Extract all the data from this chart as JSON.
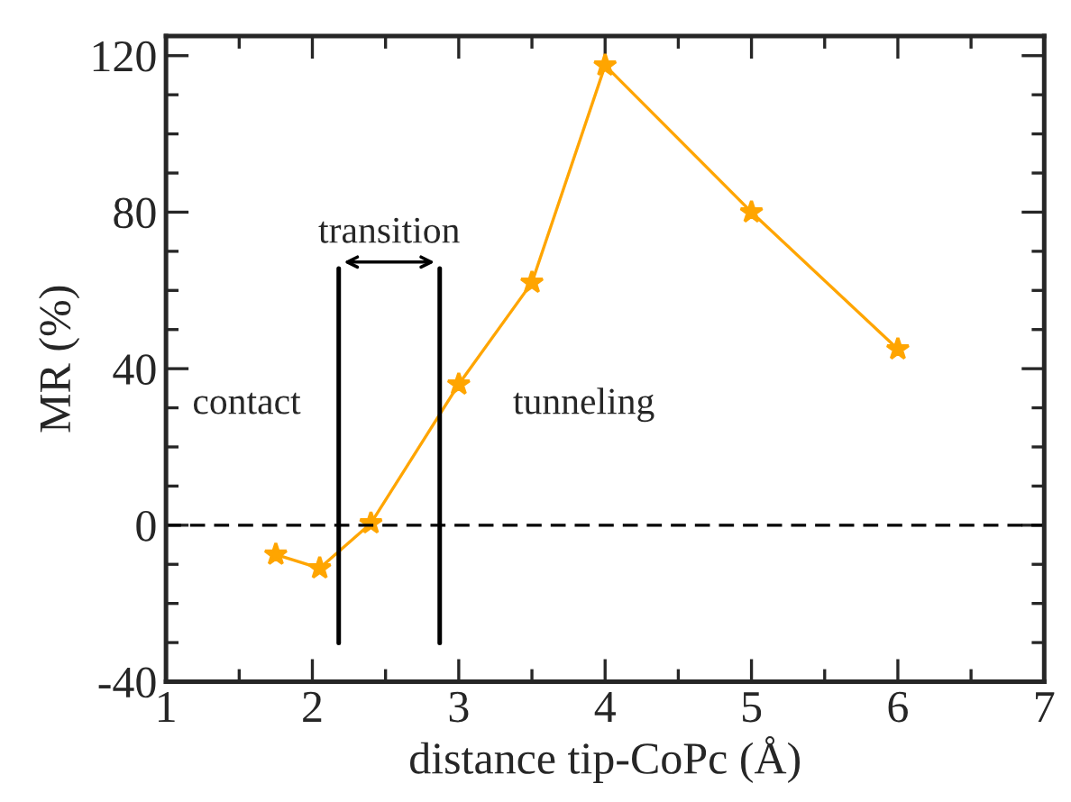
{
  "chart_data": {
    "type": "line",
    "xlabel": "distance tip-CoPc (Å)",
    "ylabel": "MR (%)",
    "x": [
      1.75,
      2.05,
      2.4,
      3,
      3.5,
      4,
      5,
      6
    ],
    "series": [
      {
        "color": "#ffa500",
        "values": [
          -7.5,
          -11,
          0.5,
          36,
          62,
          117.5,
          80,
          45
        ]
      }
    ],
    "xlim": [
      1,
      7
    ],
    "xticks": [
      1,
      2,
      3,
      4,
      5,
      6,
      7
    ],
    "ylim": [
      -40,
      125
    ],
    "yticks": [
      -40,
      0,
      40,
      80,
      120
    ],
    "marker": "star",
    "line_style": "solid",
    "grid": false,
    "legend": false,
    "ref_lines": [
      {
        "axis": "y",
        "value": 0,
        "line_style": "dashed",
        "color": "#000000"
      },
      {
        "axis": "x",
        "value": 2.18,
        "line_style": "solid",
        "color": "#000000"
      },
      {
        "axis": "x",
        "value": 2.87,
        "line_style": "solid",
        "color": "#000000"
      }
    ],
    "annotations": [
      "contact",
      "transition",
      "tunneling"
    ]
  }
}
